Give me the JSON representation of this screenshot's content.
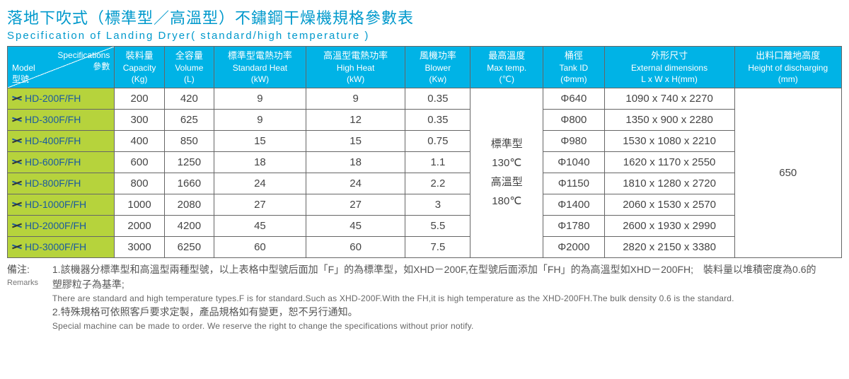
{
  "title_cn": "落地下吹式（標準型／高溫型）不鏽鋼干燥機規格參數表",
  "title_en": "Specification of Landing Dryer( standard/high temperature )",
  "header": {
    "model_top_cn": "Specifications",
    "model_top_zh": "參數",
    "model_bot_en": "Model",
    "model_bot_zh": "型號",
    "cols": [
      {
        "cn": "裝料量",
        "en": "Capacity",
        "unit": "(Kg)"
      },
      {
        "cn": "全容量",
        "en": "Volume",
        "unit": "(L)"
      },
      {
        "cn": "標準型電熱功率",
        "en": "Standard Heat",
        "unit": "(kW)"
      },
      {
        "cn": "高溫型電熱功率",
        "en": "High Heat",
        "unit": "(kW)"
      },
      {
        "cn": "風機功率",
        "en": "Blower",
        "unit": "(Kw)"
      },
      {
        "cn": "最高溫度",
        "en": "Max temp.",
        "unit": "(℃)"
      },
      {
        "cn": "桶徑",
        "en": "Tank ID",
        "unit": "(Φmm)"
      },
      {
        "cn": "外形尺寸",
        "en": "External dimensions",
        "unit": "L x W x H(mm)"
      },
      {
        "cn": "出料口離地高度",
        "en": "Height of discharging",
        "unit": "(mm)"
      }
    ]
  },
  "col_widths": [
    "140",
    "65",
    "65",
    "120",
    "130",
    "85",
    "95",
    "80",
    "170",
    "140"
  ],
  "rows": [
    {
      "model": "HD-200F/FH",
      "cap": "200",
      "vol": "420",
      "std": "9",
      "high": "9",
      "blower": "0.35",
      "tank": "Φ640",
      "dim": "1090 x 740 x 2270"
    },
    {
      "model": "HD-300F/FH",
      "cap": "300",
      "vol": "625",
      "std": "9",
      "high": "12",
      "blower": "0.35",
      "tank": "Φ800",
      "dim": "1350 x 900 x 2280"
    },
    {
      "model": "HD-400F/FH",
      "cap": "400",
      "vol": "850",
      "std": "15",
      "high": "15",
      "blower": "0.75",
      "tank": "Φ980",
      "dim": "1530 x 1080 x 2210"
    },
    {
      "model": "HD-600F/FH",
      "cap": "600",
      "vol": "1250",
      "std": "18",
      "high": "18",
      "blower": "1.1",
      "tank": "Φ1040",
      "dim": "1620 x 1170 x 2550"
    },
    {
      "model": "HD-800F/FH",
      "cap": "800",
      "vol": "1660",
      "std": "24",
      "high": "24",
      "blower": "2.2",
      "tank": "Φ1150",
      "dim": "1810 x 1280 x 2720"
    },
    {
      "model": "HD-1000F/FH",
      "cap": "1000",
      "vol": "2080",
      "std": "27",
      "high": "27",
      "blower": "3",
      "tank": "Φ1400",
      "dim": "2060 x 1530 x 2570"
    },
    {
      "model": "HD-2000F/FH",
      "cap": "2000",
      "vol": "4200",
      "std": "45",
      "high": "45",
      "blower": "5.5",
      "tank": "Φ1780",
      "dim": "2600 x 1930 x 2990"
    },
    {
      "model": "HD-3000F/FH",
      "cap": "3000",
      "vol": "6250",
      "std": "60",
      "high": "60",
      "blower": "7.5",
      "tank": "Φ2000",
      "dim": "2820 x 2150 x 3380"
    }
  ],
  "maxtemp_merged": "標準型\n130℃\n高溫型\n180℃",
  "height_merged": "650",
  "remarks": {
    "label_cn": "備注:",
    "label_en": "Remarks",
    "line1_cn": "1.該機器分標準型和高溫型兩種型號，以上表格中型號后面加「F」的為標準型，如XHD－200F,在型號后面添加「FH」的為高溫型如XHD－200FH;　裝料量以堆積密度為0.6的塑膠粒子為基準;",
    "line1_en": "There are standard and high temperature types.F is for standard.Such as XHD-200F.With the FH,it is high temperature as the XHD-200FH.The bulk density 0.6 is the standard.",
    "line2_cn": "2.特殊規格可依照客戶要求定製，產品規格如有變更，恕不另行通知。",
    "line2_en": "Special machine  can be made to order. We reserve the right to change the specifications without prior notify."
  },
  "colors": {
    "title": "#0099cc",
    "header_bg": "#00b3e6",
    "model_bg": "#b6d33c",
    "model_text": "#1a5aa0",
    "border": "#666"
  }
}
